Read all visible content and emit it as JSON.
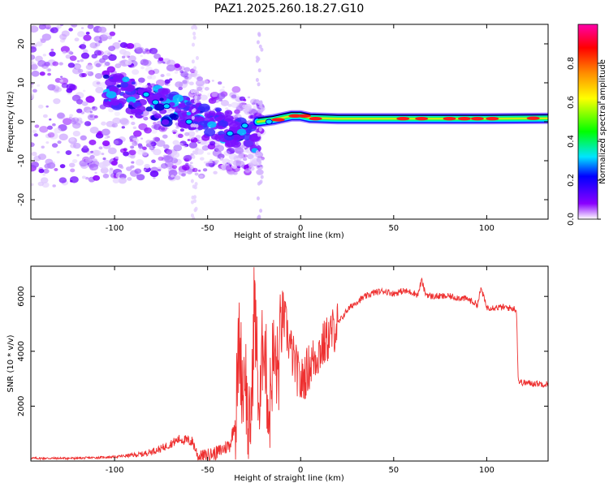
{
  "title": "PAZ1.2025.260.18.27.G10",
  "chart_data": [
    {
      "type": "heatmap",
      "xlabel": "Height of straight line (km)",
      "ylabel": "Frequency (Hz)",
      "xlim": [
        -145,
        133
      ],
      "ylim": [
        -25,
        25
      ],
      "xticks": [
        -100,
        -50,
        0,
        50,
        100
      ],
      "yticks": [
        -20,
        -10,
        0,
        10,
        20
      ],
      "colorbar": {
        "label": "Normalized spectral amplitude",
        "range": [
          0,
          1
        ],
        "ticks": [
          "0.0",
          "0.2",
          "0.4",
          "0.6",
          "0.8"
        ],
        "colors": [
          "#ffffff",
          "#8a00ff",
          "#0000ff",
          "#00e5ff",
          "#00ff00",
          "#ffff00",
          "#ff8c00",
          "#ff0000",
          "#ff00aa"
        ]
      },
      "ridge": [
        {
          "x": -23,
          "y": 0.0
        },
        {
          "x": -15,
          "y": 0.5
        },
        {
          "x": -5,
          "y": 1.5
        },
        {
          "x": 0,
          "y": 1.5
        },
        {
          "x": 5,
          "y": 1.0
        },
        {
          "x": 20,
          "y": 0.8
        },
        {
          "x": 60,
          "y": 0.8
        },
        {
          "x": 100,
          "y": 0.8
        },
        {
          "x": 133,
          "y": 0.9
        }
      ],
      "scattered_cloud": {
        "x_range": [
          -145,
          -20
        ],
        "freq_trend_start": 8,
        "freq_trend_end": -4
      }
    },
    {
      "type": "line",
      "xlabel": "Height of straight line (km)",
      "ylabel": "SNR (10 * v/v)",
      "xlim": [
        -145,
        133
      ],
      "ylim": [
        0,
        7100
      ],
      "xticks": [
        -100,
        -50,
        0,
        50,
        100
      ],
      "yticks": [
        2000,
        4000,
        6000
      ],
      "color": "#ee3030",
      "x": [
        -145,
        -120,
        -100,
        -85,
        -75,
        -65,
        -58,
        -55,
        -45,
        -38,
        -35,
        -33,
        -31,
        -30,
        -28,
        -26,
        -25,
        -22,
        -20,
        -17,
        -15,
        -12,
        -10,
        -5,
        0,
        5,
        10,
        15,
        20,
        25,
        30,
        35,
        40,
        45,
        50,
        55,
        60,
        63,
        65,
        67,
        70,
        80,
        90,
        95,
        97,
        100,
        110,
        115,
        116,
        117,
        120,
        133
      ],
      "values": [
        100,
        100,
        150,
        250,
        450,
        800,
        700,
        150,
        300,
        600,
        1500,
        4500,
        2500,
        3800,
        700,
        2500,
        6000,
        1500,
        5000,
        1500,
        3800,
        3200,
        5500,
        4000,
        2800,
        3500,
        4000,
        4500,
        5000,
        5500,
        5800,
        6000,
        6150,
        6200,
        6100,
        6200,
        6150,
        6050,
        6600,
        6100,
        6000,
        6000,
        5900,
        5700,
        6300,
        5600,
        5600,
        5550,
        5500,
        2900,
        2850,
        2800
      ]
    }
  ]
}
